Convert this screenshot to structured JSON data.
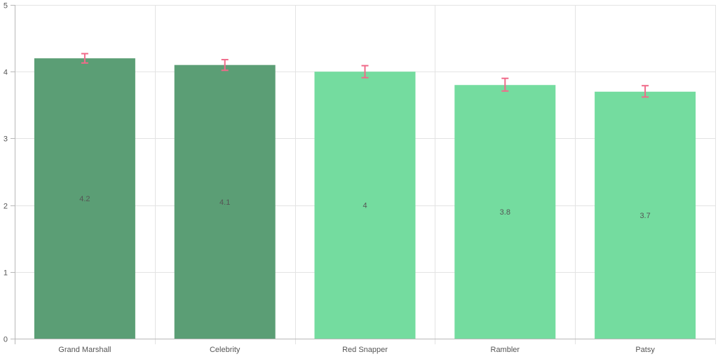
{
  "chart_data": {
    "type": "bar",
    "categories": [
      "Grand Marshall",
      "Celebrity",
      "Red Snapper",
      "Rambler",
      "Patsy"
    ],
    "values": [
      4.2,
      4.1,
      4,
      3.8,
      3.7
    ],
    "value_labels": [
      "4.2",
      "4.1",
      "4",
      "3.8",
      "3.7"
    ],
    "error_low": [
      4.13,
      4.02,
      3.91,
      3.71,
      3.62
    ],
    "error_high": [
      4.27,
      4.18,
      4.09,
      3.9,
      3.79
    ],
    "bar_colors": [
      "#5b9e75",
      "#5b9e75",
      "#74dc9f",
      "#74dc9f",
      "#74dc9f"
    ],
    "error_color": "#f06b8a",
    "grid": true,
    "ylim": [
      0,
      5
    ],
    "yticks": [
      "0",
      "1",
      "2",
      "3",
      "4",
      "5"
    ],
    "title": "",
    "xlabel": "",
    "ylabel": ""
  }
}
